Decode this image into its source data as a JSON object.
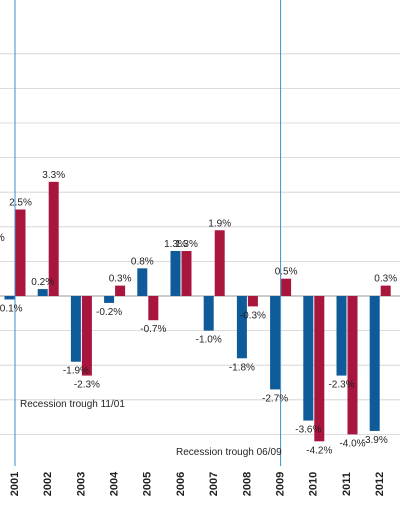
{
  "chart_data": {
    "type": "bar",
    "categories": [
      "2001",
      "2002",
      "2003",
      "2004",
      "2005",
      "2006",
      "2007",
      "2008",
      "2009",
      "2010",
      "2011",
      "2012"
    ],
    "series": [
      {
        "values": [
          -0.1,
          0.2,
          -1.9,
          -0.2,
          0.8,
          1.3,
          -1.0,
          -1.8,
          -2.7,
          -3.6,
          -2.3,
          -3.9
        ],
        "labels": [
          "-0.1%",
          "0.2%",
          "-1.9%",
          "-0.2%",
          "0.8%",
          "1.3%",
          "-1.0%",
          "-1.8%",
          "-2.7%",
          "-3.6%",
          "-2.3%",
          "-3.9%"
        ]
      },
      {
        "values": [
          2.5,
          3.3,
          -2.3,
          0.3,
          -0.7,
          1.3,
          1.9,
          -0.3,
          0.5,
          -4.2,
          -4.0,
          0.3
        ],
        "labels": [
          "2.5%",
          "3.3%",
          "-2.3%",
          "0.3%",
          "-0.7%",
          "1.3%",
          "1.9%",
          "-0.3%",
          "0.5%",
          "-4.2%",
          "-4.0%",
          "0.3%"
        ]
      }
    ],
    "colors": {
      "series_a": "#0f5a99",
      "series_b": "#a8163d",
      "recession_line": "#3d8fc6",
      "grid": "#d0d0d0"
    },
    "ylim": [
      -4.8,
      7.3
    ],
    "grid": true,
    "annotations": [
      {
        "text": "Recession trough 11/01",
        "year": "2001"
      },
      {
        "text": "Recession trough 06/09",
        "year": "2009"
      }
    ],
    "edge_label_fragment": "%"
  }
}
